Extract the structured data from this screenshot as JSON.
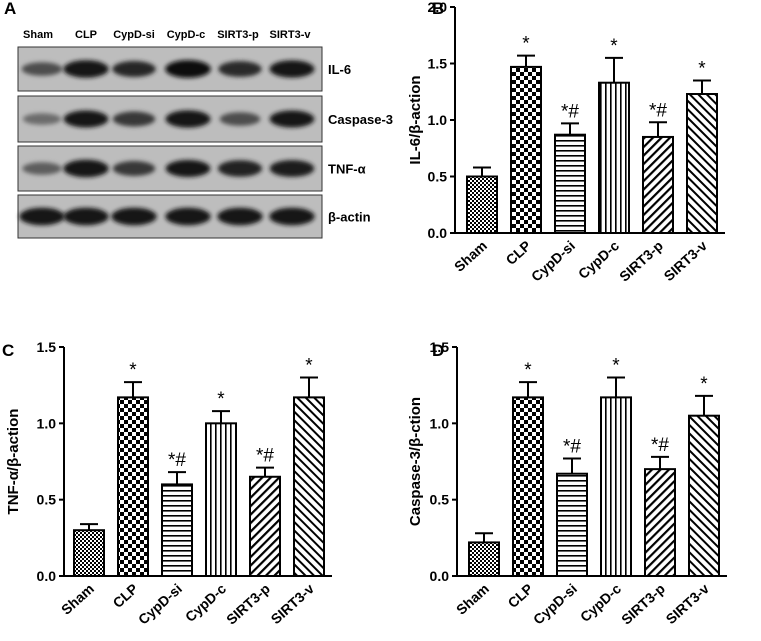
{
  "panels": {
    "A": {
      "label": "A",
      "lanes": [
        "Sham",
        "CLP",
        "CypD-si",
        "CypD-c",
        "SIRT3-p",
        "SIRT3-v"
      ],
      "blots": [
        {
          "name": "IL-6",
          "intensity": [
            0.55,
            0.95,
            0.8,
            0.98,
            0.78,
            0.92
          ]
        },
        {
          "name": "Caspase-3",
          "intensity": [
            0.35,
            0.9,
            0.7,
            0.93,
            0.55,
            0.9
          ]
        },
        {
          "name": "TNF-α",
          "intensity": [
            0.45,
            0.95,
            0.7,
            0.9,
            0.85,
            0.88
          ]
        },
        {
          "name": "β-actin",
          "intensity": [
            0.95,
            0.95,
            0.95,
            0.95,
            0.95,
            0.95
          ]
        }
      ]
    }
  },
  "chart_data": [
    {
      "panel": "B",
      "type": "bar",
      "categories": [
        "Sham",
        "CLP",
        "CypD-si",
        "CypD-c",
        "SIRT3-p",
        "SIRT3-v"
      ],
      "values": [
        0.5,
        1.47,
        0.87,
        1.33,
        0.85,
        1.23
      ],
      "errors": [
        0.08,
        0.1,
        0.1,
        0.22,
        0.13,
        0.12
      ],
      "annotations": [
        "",
        "*",
        "*#",
        "*",
        "*#",
        "*"
      ],
      "patterns": [
        "dots",
        "checker",
        "hlines",
        "vlines",
        "diag-right",
        "diag-left"
      ],
      "xlabel": "",
      "ylabel": "IL-6/β-action",
      "ylim": [
        0,
        2.0
      ],
      "yticks": [
        "0.0",
        "0.5",
        "1.0",
        "1.5",
        "2.0"
      ],
      "grid": false
    },
    {
      "panel": "C",
      "type": "bar",
      "categories": [
        "Sham",
        "CLP",
        "CypD-si",
        "CypD-c",
        "SIRT3-p",
        "SIRT3-v"
      ],
      "values": [
        0.3,
        1.17,
        0.6,
        1.0,
        0.65,
        1.17
      ],
      "errors": [
        0.04,
        0.1,
        0.08,
        0.08,
        0.06,
        0.13
      ],
      "annotations": [
        "",
        "*",
        "*#",
        "*",
        "*#",
        "*"
      ],
      "patterns": [
        "dots",
        "checker",
        "hlines",
        "vlines",
        "diag-right",
        "diag-left"
      ],
      "xlabel": "",
      "ylabel": "TNF-α/β-action",
      "ylim": [
        0,
        1.5
      ],
      "yticks": [
        "0.0",
        "0.5",
        "1.0",
        "1.5"
      ],
      "grid": false
    },
    {
      "panel": "D",
      "type": "bar",
      "categories": [
        "Sham",
        "CLP",
        "CypD-si",
        "CypD-c",
        "SIRT3-p",
        "SIRT3-v"
      ],
      "values": [
        0.22,
        1.17,
        0.67,
        1.17,
        0.7,
        1.05
      ],
      "errors": [
        0.06,
        0.1,
        0.1,
        0.13,
        0.08,
        0.13
      ],
      "annotations": [
        "",
        "*",
        "*#",
        "*",
        "*#",
        "*"
      ],
      "patterns": [
        "dots",
        "checker",
        "hlines",
        "vlines",
        "diag-right",
        "diag-left"
      ],
      "xlabel": "",
      "ylabel": "Caspase-3/β-ction",
      "ylim": [
        0,
        1.5
      ],
      "yticks": [
        "0.0",
        "0.5",
        "1.0",
        "1.5"
      ],
      "grid": false
    }
  ]
}
